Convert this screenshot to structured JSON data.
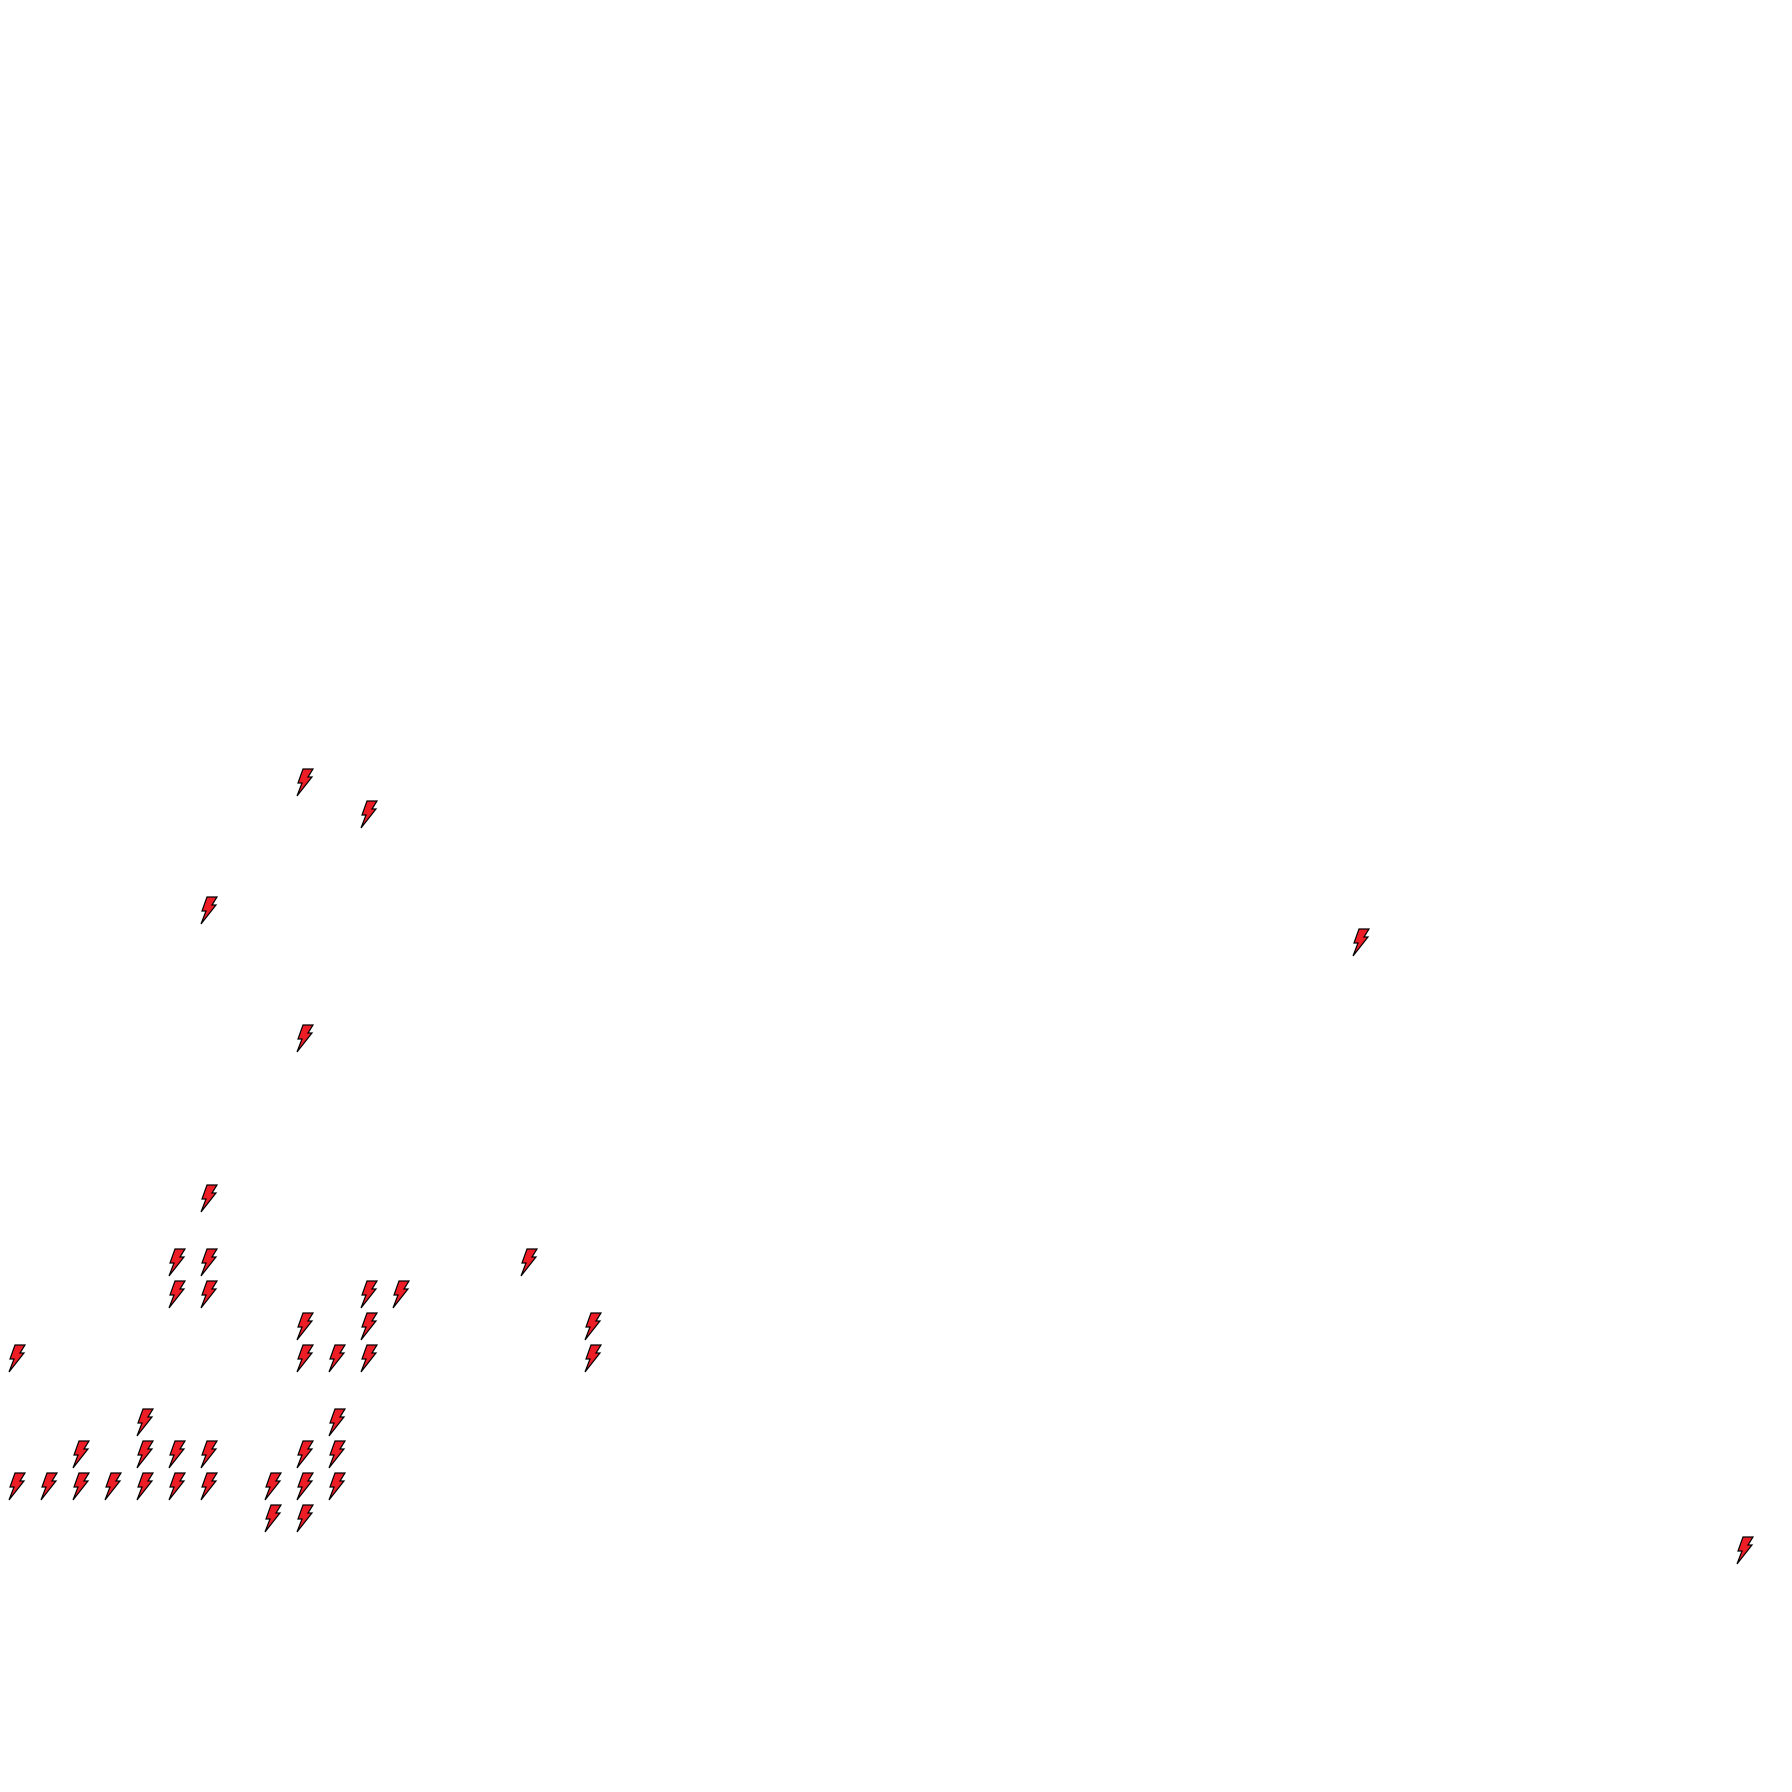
{
  "map": {
    "marker_icon": "lightning-bolt-icon",
    "marker_fill": "#ee1c25",
    "marker_stroke": "#000000",
    "background": "#ffffff",
    "marker_count": 42
  }
}
